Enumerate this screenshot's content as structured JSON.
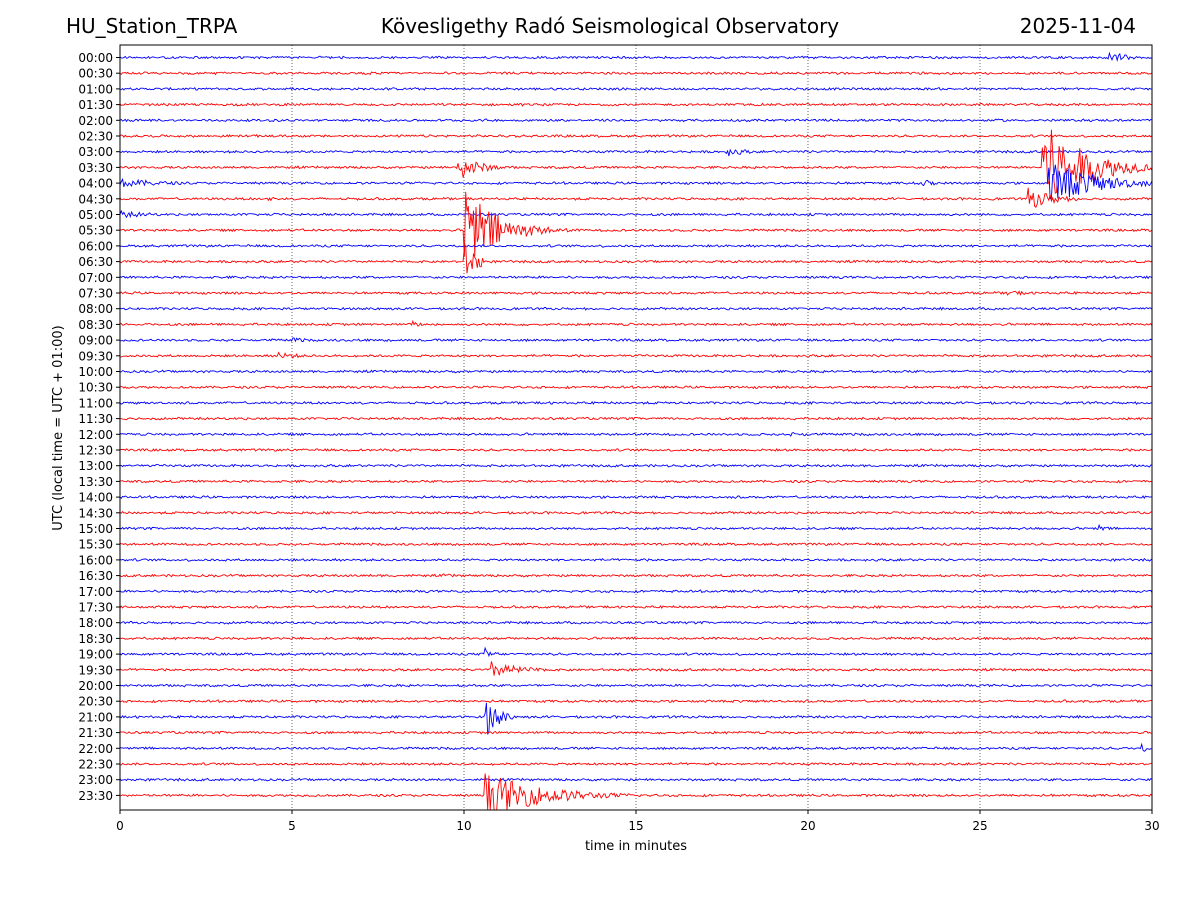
{
  "header": {
    "station": "HU_Station_TRPA",
    "observatory": "Kövesligethy Radó Seismological Observatory",
    "date": "2025-11-04"
  },
  "chart_data": {
    "type": "line",
    "title": "Kövesligethy Radó Seismological Observatory",
    "xlabel": "time in minutes",
    "ylabel": "UTC (local time = UTC + 01:00)",
    "xlim": [
      0,
      30
    ],
    "xticks": [
      "0",
      "5",
      "10",
      "15",
      "20",
      "25",
      "30"
    ],
    "grid": "vertical dotted lines at every 5 minutes",
    "row_labels": [
      "00:00",
      "00:30",
      "01:00",
      "01:30",
      "02:00",
      "02:30",
      "03:00",
      "03:30",
      "04:00",
      "04:30",
      "05:00",
      "05:30",
      "06:00",
      "06:30",
      "07:00",
      "07:30",
      "08:00",
      "08:30",
      "09:00",
      "09:30",
      "10:00",
      "10:30",
      "11:00",
      "11:30",
      "12:00",
      "12:30",
      "13:00",
      "13:30",
      "14:00",
      "14:30",
      "15:00",
      "15:30",
      "16:00",
      "16:30",
      "17:00",
      "17:30",
      "18:00",
      "18:30",
      "19:00",
      "19:30",
      "20:00",
      "20:30",
      "21:00",
      "21:30",
      "22:00",
      "22:30",
      "23:00",
      "23:30"
    ],
    "series_colors": [
      "#0000ff",
      "#ff0000"
    ],
    "baseline_noise_amplitude": 0.18,
    "events": [
      {
        "row": "00:00",
        "start": 28.7,
        "duration": 1.3,
        "amplitude": 0.9,
        "decay": 0.6
      },
      {
        "row": "03:00",
        "start": 17.6,
        "duration": 1.8,
        "amplitude": 0.7,
        "decay": 0.6
      },
      {
        "row": "03:30",
        "start": 26.8,
        "duration": 3.2,
        "amplitude": 6.5,
        "decay": 1.2
      },
      {
        "row": "03:30",
        "start": 9.8,
        "duration": 2.5,
        "amplitude": 2.0,
        "decay": 0.6
      },
      {
        "row": "04:00",
        "start": 0.0,
        "duration": 2.0,
        "amplitude": 0.6,
        "decay": 1.5
      },
      {
        "row": "04:00",
        "start": 23.3,
        "duration": 0.8,
        "amplitude": 0.6,
        "decay": 0.4
      },
      {
        "row": "04:00",
        "start": 27.0,
        "duration": 3.0,
        "amplitude": 3.0,
        "decay": 1.4
      },
      {
        "row": "04:30",
        "start": 4.3,
        "duration": 0.6,
        "amplitude": 0.4,
        "decay": 0.3
      },
      {
        "row": "04:30",
        "start": 26.4,
        "duration": 1.6,
        "amplitude": 1.5,
        "decay": 0.8
      },
      {
        "row": "05:00",
        "start": 0.0,
        "duration": 1.6,
        "amplitude": 0.5,
        "decay": 1.0
      },
      {
        "row": "05:30",
        "start": 10.0,
        "duration": 3.5,
        "amplitude": 6.5,
        "decay": 0.9
      },
      {
        "row": "06:30",
        "start": 10.0,
        "duration": 0.6,
        "amplitude": 2.5,
        "decay": 0.5
      },
      {
        "row": "07:30",
        "start": 25.8,
        "duration": 1.5,
        "amplitude": 0.4,
        "decay": 0.8
      },
      {
        "row": "08:30",
        "start": 8.5,
        "duration": 0.5,
        "amplitude": 0.5,
        "decay": 0.3
      },
      {
        "row": "09:00",
        "start": 5.0,
        "duration": 1.0,
        "amplitude": 0.4,
        "decay": 0.5
      },
      {
        "row": "09:30",
        "start": 4.6,
        "duration": 1.2,
        "amplitude": 0.7,
        "decay": 0.5
      },
      {
        "row": "12:00",
        "start": 19.5,
        "duration": 2.0,
        "amplitude": 0.3,
        "decay": 1.0
      },
      {
        "row": "15:00",
        "start": 28.4,
        "duration": 0.5,
        "amplitude": 0.6,
        "decay": 0.3
      },
      {
        "row": "16:30",
        "start": 9.4,
        "duration": 1.0,
        "amplitude": 0.3,
        "decay": 0.6
      },
      {
        "row": "19:30",
        "start": 10.8,
        "duration": 3.0,
        "amplitude": 1.2,
        "decay": 0.8
      },
      {
        "row": "19:00",
        "start": 10.6,
        "duration": 0.5,
        "amplitude": 0.9,
        "decay": 0.3
      },
      {
        "row": "21:00",
        "start": 10.6,
        "duration": 0.8,
        "amplitude": 3.0,
        "decay": 0.4
      },
      {
        "row": "22:00",
        "start": 29.7,
        "duration": 0.3,
        "amplitude": 0.6,
        "decay": 0.2
      },
      {
        "row": "23:30",
        "start": 10.6,
        "duration": 12.0,
        "amplitude": 3.2,
        "decay": 1.6
      }
    ]
  }
}
